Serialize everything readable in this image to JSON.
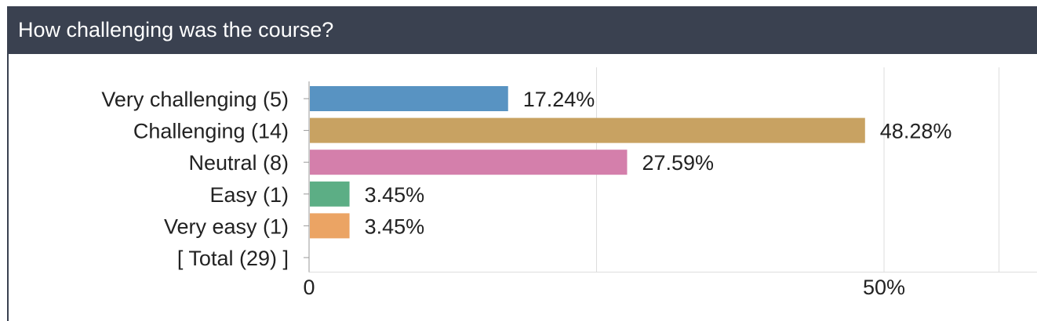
{
  "header": {
    "title": "How challenging was the course?"
  },
  "chart_data": {
    "type": "bar",
    "orientation": "horizontal",
    "categories": [
      "Very challenging (5)",
      "Challenging (14)",
      "Neutral (8)",
      "Easy (1)",
      "Very easy (1)",
      "[ Total (29) ]"
    ],
    "values": [
      17.24,
      48.28,
      27.59,
      3.45,
      3.45,
      null
    ],
    "value_labels": [
      "17.24%",
      "48.28%",
      "27.59%",
      "3.45%",
      "3.45%",
      ""
    ],
    "colors": [
      "#5893c2",
      "#c8a262",
      "#d47fab",
      "#5cae85",
      "#eba464",
      ""
    ],
    "xlim": [
      0,
      60
    ],
    "ticks": [
      {
        "value": 0,
        "label": "0"
      },
      {
        "value": 50,
        "label": "50%"
      }
    ],
    "grid": true
  }
}
